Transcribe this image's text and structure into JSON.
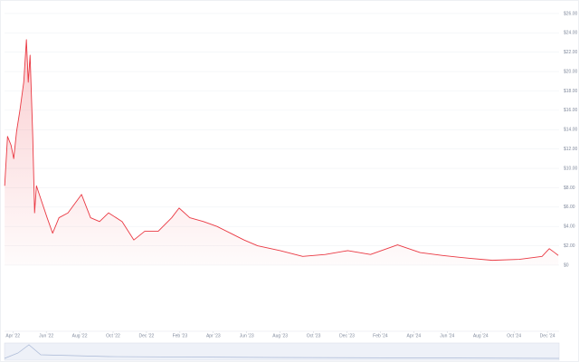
{
  "chart_data": {
    "type": "area",
    "x": [
      -0.49,
      -0.32,
      -0.11,
      0.05,
      0.22,
      0.43,
      0.65,
      0.81,
      0.92,
      1.03,
      1.19,
      1.3,
      1.41,
      1.68,
      2.05,
      2.38,
      2.76,
      3.3,
      4.11,
      4.65,
      5.19,
      5.73,
      6.54,
      7.24,
      7.89,
      8.7,
      9.51,
      9.95,
      10.59,
      11.41,
      12.22,
      13.03,
      13.84,
      14.65,
      16,
      17.35,
      18.7,
      20.05,
      21.41,
      23.03,
      24.38,
      25.73,
      27.35,
      28.7,
      30.32,
      31.68,
      32.11,
      32.43,
      32.65
    ],
    "values": [
      8.2,
      13.3,
      12.4,
      11,
      13.8,
      16.1,
      18.9,
      23.3,
      18.9,
      21.7,
      13.3,
      5.4,
      8.2,
      6.8,
      4.9,
      3.3,
      4.9,
      5.4,
      7.3,
      4.9,
      4.5,
      5.4,
      4.5,
      2.6,
      3.5,
      3.5,
      4.9,
      5.9,
      4.9,
      4.5,
      4.0,
      3.3,
      2.6,
      2.0,
      1.5,
      0.9,
      1.1,
      1.5,
      1.1,
      2.1,
      1.3,
      1.0,
      0.7,
      0.5,
      0.6,
      0.9,
      1.7,
      1.3,
      1.0
    ],
    "color": "#ea3943",
    "xlim": [
      -0.5,
      32.7
    ],
    "xticks": [
      {
        "value": 0,
        "label": "Apr '22"
      },
      {
        "value": 2,
        "label": "Jun '22"
      },
      {
        "value": 4,
        "label": "Aug '22"
      },
      {
        "value": 6,
        "label": "Oct '22"
      },
      {
        "value": 8,
        "label": "Dec '22"
      },
      {
        "value": 10,
        "label": "Feb '23"
      },
      {
        "value": 12,
        "label": "Apr '23"
      },
      {
        "value": 14,
        "label": "Jun '23"
      },
      {
        "value": 16,
        "label": "Aug '23"
      },
      {
        "value": 18,
        "label": "Oct '23"
      },
      {
        "value": 20,
        "label": "Dec '23"
      },
      {
        "value": 22,
        "label": "Feb '24"
      },
      {
        "value": 24,
        "label": "Apr '24"
      },
      {
        "value": 26,
        "label": "Jun '24"
      },
      {
        "value": 28,
        "label": "Aug '24"
      },
      {
        "value": 30,
        "label": "Oct '24"
      },
      {
        "value": 32,
        "label": "Dec '24"
      }
    ],
    "ylim": [
      -0.47,
      26.65
    ],
    "yticks": [
      {
        "value": 0,
        "label": "$0"
      },
      {
        "value": 2,
        "label": "$2.00"
      },
      {
        "value": 4,
        "label": "$4.00"
      },
      {
        "value": 6,
        "label": "$6.00"
      },
      {
        "value": 8,
        "label": "$8.00"
      },
      {
        "value": 10,
        "label": "$10.00"
      },
      {
        "value": 12,
        "label": "$12.00"
      },
      {
        "value": 14,
        "label": "$14.00"
      },
      {
        "value": 16,
        "label": "$16.00"
      },
      {
        "value": 18,
        "label": "$18.00"
      },
      {
        "value": 20,
        "label": "$20.00"
      },
      {
        "value": 22,
        "label": "$22.00"
      },
      {
        "value": 24,
        "label": "$24.00"
      },
      {
        "value": 26,
        "label": "$26.00"
      }
    ],
    "grid": true
  }
}
